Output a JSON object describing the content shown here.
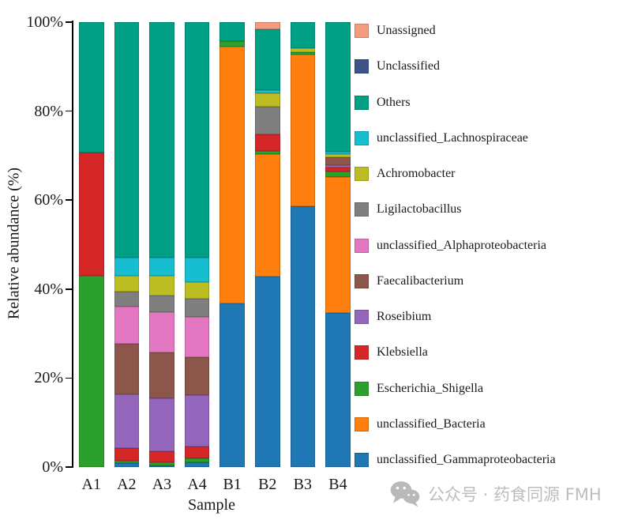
{
  "chart_data": {
    "type": "bar",
    "stacked": true,
    "xlabel": "Sample",
    "ylabel": "Relative abundance (%)",
    "categories": [
      "A1",
      "A2",
      "A3",
      "A4",
      "B1",
      "B2",
      "B3",
      "B4"
    ],
    "y_ticks": [
      "0%",
      "20%",
      "40%",
      "60%",
      "80%",
      "100%"
    ],
    "y_tick_values": [
      0,
      20,
      40,
      60,
      80,
      100
    ],
    "ylim": [
      0,
      100
    ],
    "grid": false,
    "legend_position": "right",
    "series": [
      {
        "name": "unclassified_Gammaproteobacteria",
        "color": "#1F77B4",
        "values": [
          0,
          0.9,
          0.4,
          1.1,
          36.8,
          42.8,
          58.6,
          34.7
        ]
      },
      {
        "name": "unclassified_Bacteria",
        "color": "#FF7F0E",
        "values": [
          0,
          0,
          0,
          0,
          57.7,
          27.6,
          34.1,
          30.5
        ]
      },
      {
        "name": "Escherichia_Shigella",
        "color": "#2CA02C",
        "values": [
          42.9,
          0.5,
          0.7,
          0.9,
          1.2,
          0.6,
          0.5,
          1.2
        ]
      },
      {
        "name": "Klebsiella",
        "color": "#D62728",
        "values": [
          27.8,
          2.8,
          2.5,
          2.7,
          0,
          3.8,
          0,
          0.9
        ]
      },
      {
        "name": "Roseibium",
        "color": "#9467BD",
        "values": [
          0,
          12.1,
          11.9,
          11.5,
          0,
          0,
          0,
          0.5
        ]
      },
      {
        "name": "Faecalibacterium",
        "color": "#8C564B",
        "values": [
          0,
          11.5,
          10.3,
          8.5,
          0,
          0,
          0,
          1.8
        ]
      },
      {
        "name": "unclassified_Alphaproteobacteria",
        "color": "#E377C2",
        "values": [
          0,
          8.3,
          9.1,
          9.1,
          0,
          0,
          0,
          0
        ]
      },
      {
        "name": "Ligilactobacillus",
        "color": "#7F7F7F",
        "values": [
          0,
          3.4,
          3.6,
          4.1,
          0,
          6.2,
          0,
          0
        ]
      },
      {
        "name": "Achromobacter",
        "color": "#BCBD22",
        "values": [
          0,
          3.4,
          4.4,
          3.6,
          0,
          3.1,
          0.9,
          0.7
        ]
      },
      {
        "name": "unclassified_Lachnospiraceae",
        "color": "#17BECF",
        "values": [
          0,
          4.1,
          4.1,
          5.5,
          0,
          0.7,
          0,
          0.5
        ]
      },
      {
        "name": "Others",
        "color": "#00A087",
        "values": [
          29.3,
          53.0,
          53.0,
          53.0,
          4.3,
          13.6,
          5.9,
          29.2
        ]
      },
      {
        "name": "Unclassified",
        "color": "#3C5488",
        "values": [
          0,
          0,
          0,
          0,
          0,
          0,
          0,
          0
        ]
      },
      {
        "name": "Unassigned",
        "color": "#F39B7F",
        "values": [
          0,
          0,
          0,
          0,
          0,
          1.6,
          0,
          0
        ]
      }
    ]
  },
  "watermark": {
    "icon": "wechat-icon",
    "text": "公众号 · 药食同源 FMH",
    "color": "#bdbdbd"
  }
}
